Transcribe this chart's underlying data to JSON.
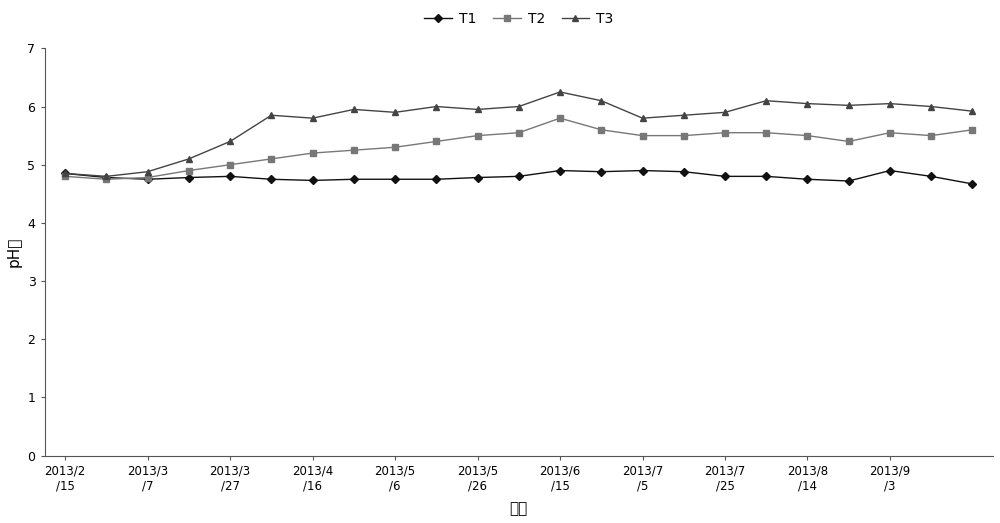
{
  "x_labels": [
    "2013/2\n/15",
    "2013/3\n/7",
    "2013/3\n/27",
    "2013/4\n/16",
    "2013/5\n/6",
    "2013/5\n/26",
    "2013/6\n/15",
    "2013/7\n/5",
    "2013/7\n/25",
    "2013/8\n/14",
    "2013/9\n/3"
  ],
  "x_tick_positions": [
    0,
    2,
    4,
    6,
    8,
    10,
    12,
    14,
    16,
    18,
    20
  ],
  "T1": [
    4.85,
    4.78,
    4.75,
    4.78,
    4.8,
    4.75,
    4.73,
    4.75,
    4.75,
    4.75,
    4.78,
    4.8,
    4.9,
    4.88,
    4.9,
    4.88,
    4.8,
    4.8,
    4.75,
    4.72,
    4.9,
    4.8,
    4.67
  ],
  "T2": [
    4.8,
    4.75,
    4.78,
    4.9,
    5.0,
    5.1,
    5.2,
    5.25,
    5.3,
    5.4,
    5.5,
    5.55,
    5.8,
    5.6,
    5.5,
    5.5,
    5.55,
    5.55,
    5.5,
    5.4,
    5.55,
    5.5,
    5.6
  ],
  "T3": [
    4.85,
    4.8,
    4.88,
    5.1,
    5.4,
    5.85,
    5.8,
    5.95,
    5.9,
    6.0,
    5.95,
    6.0,
    6.25,
    6.1,
    5.8,
    5.85,
    5.9,
    6.1,
    6.05,
    6.02,
    6.05,
    6.0,
    5.92
  ],
  "ylim": [
    0,
    7
  ],
  "yticks": [
    0,
    1,
    2,
    3,
    4,
    5,
    6,
    7
  ],
  "ylabel": "pH值",
  "xlabel": "日期",
  "legend_labels": [
    "T1",
    "T2",
    "T3"
  ],
  "T1_color": "#111111",
  "T2_color": "#777777",
  "T3_color": "#444444",
  "bg_color": "#ffffff",
  "figure_bg": "#ffffff"
}
